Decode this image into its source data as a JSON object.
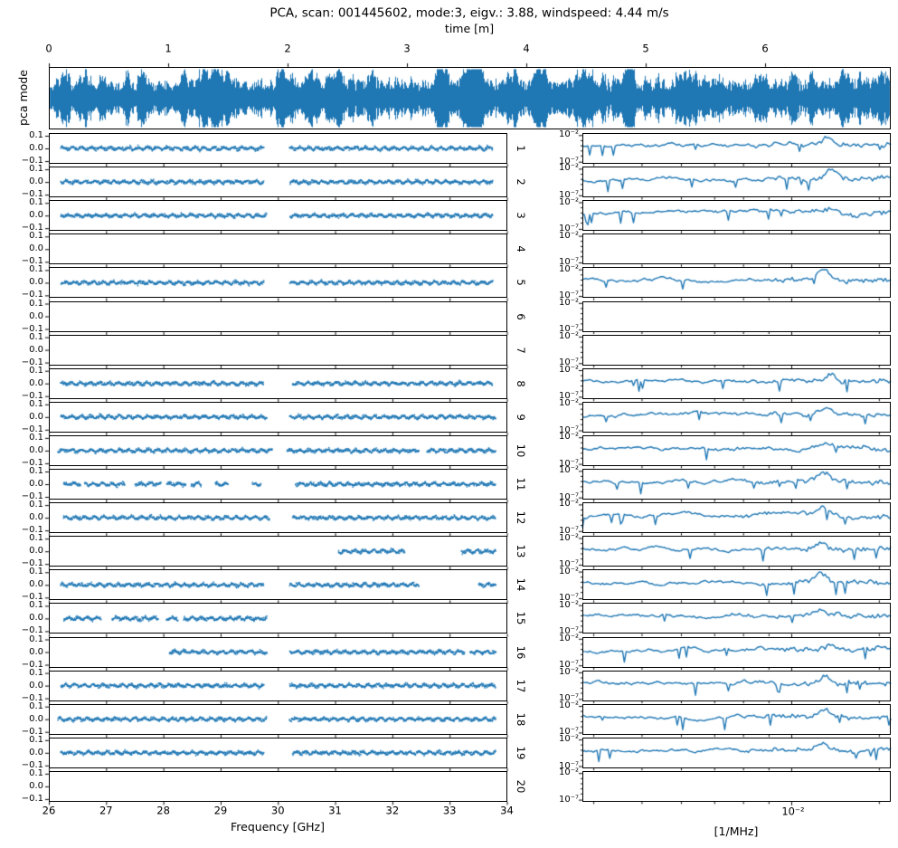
{
  "chart_data": {
    "type": "multi-panel-line",
    "title": "PCA, scan: 001445602, mode:3, eigv.: 3.88, windspeed: 4.44 m/s",
    "line_color": "#1f77b4",
    "axis_color": "#000000",
    "background": "#ffffff",
    "top_panel": {
      "ylabel": "pca mode",
      "xlabel": "time [m]",
      "xtick_labels": [
        "0",
        "1",
        "2",
        "3",
        "4",
        "5",
        "6"
      ],
      "xlim_minutes": [
        0,
        7.05
      ],
      "signal": "dense zero-mean broadband noise time series spanning full panel height"
    },
    "left_column": {
      "xlabel": "Frequency [GHz]",
      "xtick_labels": [
        "26",
        "27",
        "28",
        "29",
        "30",
        "31",
        "32",
        "33",
        "34"
      ],
      "xlim": [
        26,
        34
      ],
      "ytick_labels": [
        "0.1",
        "0.0",
        "−0.1"
      ],
      "ylim": [
        -0.122,
        0.122
      ],
      "band_mean": 0.0,
      "band_std": 0.012,
      "note": "each row shows a flat noisy scatter band at 0 over the frequency segments listed per row; gap around 30 GHz"
    },
    "right_column": {
      "xlabel": "[1/MHz]",
      "xtick_labels": [
        "10⁻²"
      ],
      "xlim": [
        0.0038,
        0.0158
      ],
      "xscale": "log",
      "ytick_labels": [
        "10⁻²",
        "10⁻⁷"
      ],
      "ylim_log10": [
        -7.6,
        -1.6
      ],
      "yscale": "log",
      "baseline_log10": -4.1,
      "peak_frequency": 0.012,
      "note": "noisy power spectral density per mode, dips to ~1e-6 and a peak near 0.012 1/MHz"
    },
    "rows": [
      {
        "label": "1",
        "segments_ghz": [
          [
            26.2,
            29.75
          ],
          [
            30.2,
            33.75
          ]
        ],
        "has_psd": true
      },
      {
        "label": "2",
        "segments_ghz": [
          [
            26.2,
            29.75
          ],
          [
            30.2,
            33.75
          ]
        ],
        "has_psd": true
      },
      {
        "label": "3",
        "segments_ghz": [
          [
            26.2,
            29.8
          ],
          [
            30.2,
            33.75
          ]
        ],
        "has_psd": true
      },
      {
        "label": "4",
        "segments_ghz": [],
        "has_psd": false
      },
      {
        "label": "5",
        "segments_ghz": [
          [
            26.2,
            29.75
          ],
          [
            30.2,
            33.75
          ]
        ],
        "has_psd": true
      },
      {
        "label": "6",
        "segments_ghz": [],
        "has_psd": false
      },
      {
        "label": "7",
        "segments_ghz": [],
        "has_psd": false
      },
      {
        "label": "8",
        "segments_ghz": [
          [
            26.2,
            29.75
          ],
          [
            30.25,
            33.75
          ]
        ],
        "has_psd": true
      },
      {
        "label": "9",
        "segments_ghz": [
          [
            26.2,
            29.8
          ],
          [
            30.2,
            33.8
          ]
        ],
        "has_psd": true
      },
      {
        "label": "10",
        "segments_ghz": [
          [
            26.15,
            29.9
          ],
          [
            30.15,
            32.45
          ],
          [
            32.6,
            33.8
          ]
        ],
        "has_psd": true
      },
      {
        "label": "11",
        "segments_ghz": [
          [
            26.25,
            26.55
          ],
          [
            26.62,
            27.32
          ],
          [
            27.5,
            27.95
          ],
          [
            28.05,
            28.38
          ],
          [
            28.48,
            28.65
          ],
          [
            28.9,
            29.12
          ],
          [
            29.55,
            29.7
          ],
          [
            30.3,
            33.8
          ]
        ],
        "has_psd": true
      },
      {
        "label": "12",
        "segments_ghz": [
          [
            26.25,
            29.85
          ],
          [
            30.25,
            33.8
          ]
        ],
        "has_psd": true
      },
      {
        "label": "13",
        "segments_ghz": [
          [
            31.05,
            32.2
          ],
          [
            33.2,
            33.8
          ]
        ],
        "has_psd": true
      },
      {
        "label": "14",
        "segments_ghz": [
          [
            26.2,
            29.75
          ],
          [
            30.2,
            32.45
          ],
          [
            33.5,
            33.8
          ]
        ],
        "has_psd": true
      },
      {
        "label": "15",
        "segments_ghz": [
          [
            26.25,
            26.9
          ],
          [
            27.1,
            27.9
          ],
          [
            28.05,
            28.25
          ],
          [
            28.35,
            29.8
          ]
        ],
        "has_psd": true
      },
      {
        "label": "16",
        "segments_ghz": [
          [
            28.1,
            29.8
          ],
          [
            30.2,
            33.25
          ],
          [
            33.35,
            33.8
          ]
        ],
        "has_psd": true
      },
      {
        "label": "17",
        "segments_ghz": [
          [
            26.2,
            29.75
          ],
          [
            30.2,
            33.8
          ]
        ],
        "has_psd": true
      },
      {
        "label": "18",
        "segments_ghz": [
          [
            26.15,
            29.8
          ],
          [
            30.2,
            33.8
          ]
        ],
        "has_psd": true
      },
      {
        "label": "19",
        "segments_ghz": [
          [
            26.2,
            29.75
          ],
          [
            30.25,
            33.8
          ]
        ],
        "has_psd": true
      },
      {
        "label": "20",
        "segments_ghz": [],
        "has_psd": false
      }
    ]
  }
}
